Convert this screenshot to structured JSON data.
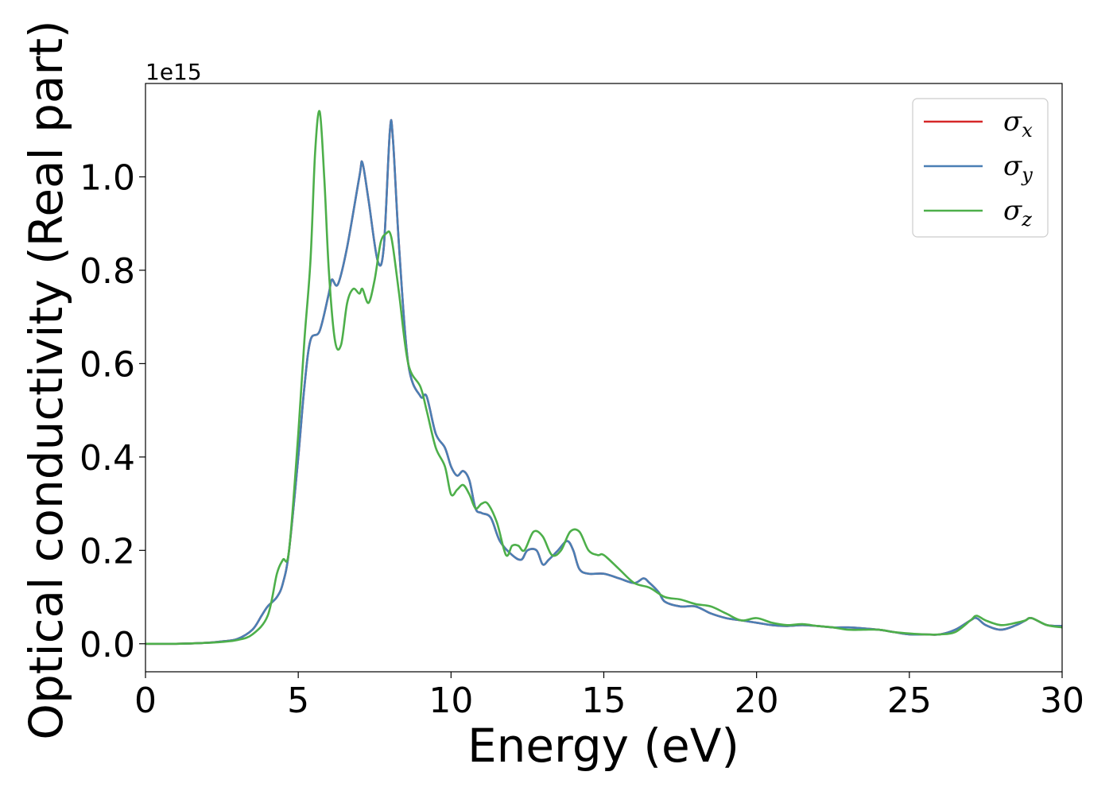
{
  "chart_data": {
    "type": "line",
    "title": "",
    "xlabel": "Energy (eV)",
    "ylabel": "Optical conductivity (Real part)",
    "y_offset_text": "1e15",
    "xlim": [
      0,
      30
    ],
    "ylim": [
      -0.06,
      1.2
    ],
    "y_scale": 1000000000000000.0,
    "grid": false,
    "legend_placement": "top-right",
    "x_ticks": [
      0,
      5,
      10,
      15,
      20,
      25,
      30
    ],
    "x_tick_labels": [
      "0",
      "5",
      "10",
      "15",
      "20",
      "25",
      "30"
    ],
    "y_ticks": [
      0.0,
      0.2,
      0.4,
      0.6,
      0.8,
      1.0
    ],
    "y_tick_labels": [
      "0.0",
      "0.2",
      "0.4",
      "0.6",
      "0.8",
      "1.0"
    ],
    "series": [
      {
        "name": "σx",
        "symbol": "σ",
        "subscript": "x",
        "color": "#d62728",
        "x": [
          0,
          1,
          2,
          2.5,
          3,
          3.5,
          3.8,
          4.0,
          4.3,
          4.5,
          4.7,
          5.0,
          5.2,
          5.4,
          5.7,
          6.0,
          6.1,
          6.3,
          6.6,
          7.0,
          7.1,
          7.3,
          7.6,
          7.8,
          8.0,
          8.1,
          8.3,
          8.6,
          9.0,
          9.2,
          9.5,
          9.8,
          10.0,
          10.2,
          10.4,
          10.6,
          10.8,
          11.0,
          11.3,
          11.6,
          12.0,
          12.3,
          12.5,
          12.8,
          13.0,
          13.2,
          13.5,
          13.8,
          14.0,
          14.2,
          14.5,
          15.0,
          15.5,
          16.0,
          16.3,
          16.5,
          16.8,
          17.0,
          17.5,
          18.0,
          18.5,
          19.0,
          19.5,
          20.0,
          20.5,
          21.0,
          21.5,
          22.0,
          22.5,
          23.0,
          23.5,
          24.0,
          24.5,
          25.0,
          25.5,
          26.0,
          26.5,
          27.0,
          27.2,
          27.5,
          28.0,
          28.5,
          28.8,
          29.0,
          29.5,
          30.0
        ],
        "y": [
          0,
          0,
          0.002,
          0.005,
          0.01,
          0.03,
          0.06,
          0.08,
          0.1,
          0.13,
          0.2,
          0.4,
          0.55,
          0.65,
          0.67,
          0.75,
          0.78,
          0.77,
          0.85,
          1.0,
          1.03,
          0.95,
          0.82,
          0.85,
          1.1,
          1.08,
          0.85,
          0.6,
          0.53,
          0.53,
          0.45,
          0.42,
          0.38,
          0.36,
          0.37,
          0.35,
          0.29,
          0.28,
          0.27,
          0.22,
          0.19,
          0.18,
          0.2,
          0.2,
          0.17,
          0.18,
          0.2,
          0.22,
          0.2,
          0.16,
          0.15,
          0.15,
          0.14,
          0.13,
          0.14,
          0.13,
          0.11,
          0.09,
          0.08,
          0.08,
          0.065,
          0.055,
          0.05,
          0.045,
          0.04,
          0.038,
          0.04,
          0.038,
          0.035,
          0.035,
          0.033,
          0.03,
          0.025,
          0.02,
          0.02,
          0.02,
          0.03,
          0.05,
          0.055,
          0.04,
          0.03,
          0.04,
          0.05,
          0.055,
          0.04,
          0.038
        ]
      },
      {
        "name": "σy",
        "symbol": "σ",
        "subscript": "y",
        "color": "#4a7fb5",
        "x": [
          0,
          1,
          2,
          2.5,
          3,
          3.5,
          3.8,
          4.0,
          4.3,
          4.5,
          4.7,
          5.0,
          5.2,
          5.4,
          5.7,
          6.0,
          6.1,
          6.3,
          6.6,
          7.0,
          7.1,
          7.3,
          7.6,
          7.8,
          8.0,
          8.1,
          8.3,
          8.6,
          9.0,
          9.2,
          9.5,
          9.8,
          10.0,
          10.2,
          10.4,
          10.6,
          10.8,
          11.0,
          11.3,
          11.6,
          12.0,
          12.3,
          12.5,
          12.8,
          13.0,
          13.2,
          13.5,
          13.8,
          14.0,
          14.2,
          14.5,
          15.0,
          15.5,
          16.0,
          16.3,
          16.5,
          16.8,
          17.0,
          17.5,
          18.0,
          18.5,
          19.0,
          19.5,
          20.0,
          20.5,
          21.0,
          21.5,
          22.0,
          22.5,
          23.0,
          23.5,
          24.0,
          24.5,
          25.0,
          25.5,
          26.0,
          26.5,
          27.0,
          27.2,
          27.5,
          28.0,
          28.5,
          28.8,
          29.0,
          29.5,
          30.0
        ],
        "y": [
          0,
          0,
          0.002,
          0.005,
          0.01,
          0.03,
          0.06,
          0.08,
          0.1,
          0.13,
          0.2,
          0.4,
          0.55,
          0.65,
          0.67,
          0.75,
          0.78,
          0.77,
          0.85,
          1.0,
          1.03,
          0.95,
          0.82,
          0.85,
          1.1,
          1.08,
          0.85,
          0.6,
          0.53,
          0.53,
          0.45,
          0.42,
          0.38,
          0.36,
          0.37,
          0.35,
          0.29,
          0.28,
          0.27,
          0.22,
          0.19,
          0.18,
          0.2,
          0.2,
          0.17,
          0.18,
          0.2,
          0.22,
          0.2,
          0.16,
          0.15,
          0.15,
          0.14,
          0.13,
          0.14,
          0.13,
          0.11,
          0.09,
          0.08,
          0.08,
          0.065,
          0.055,
          0.05,
          0.045,
          0.04,
          0.038,
          0.04,
          0.038,
          0.035,
          0.035,
          0.033,
          0.03,
          0.025,
          0.02,
          0.02,
          0.02,
          0.03,
          0.05,
          0.055,
          0.04,
          0.03,
          0.04,
          0.05,
          0.055,
          0.04,
          0.038
        ]
      },
      {
        "name": "σz",
        "symbol": "σ",
        "subscript": "z",
        "color": "#4daf4a",
        "x": [
          0,
          1,
          2,
          2.5,
          3,
          3.5,
          4.0,
          4.3,
          4.5,
          4.7,
          5.0,
          5.2,
          5.4,
          5.55,
          5.7,
          5.85,
          6.0,
          6.2,
          6.4,
          6.6,
          6.8,
          7.0,
          7.1,
          7.3,
          7.5,
          7.7,
          7.9,
          8.0,
          8.1,
          8.3,
          8.6,
          9.0,
          9.2,
          9.5,
          9.8,
          10.0,
          10.2,
          10.4,
          10.6,
          10.8,
          11.0,
          11.2,
          11.5,
          11.8,
          12.0,
          12.2,
          12.4,
          12.7,
          13.0,
          13.3,
          13.6,
          13.9,
          14.2,
          14.5,
          14.8,
          15.0,
          15.5,
          16.0,
          16.5,
          17.0,
          17.5,
          18.0,
          18.5,
          19.0,
          19.5,
          20.0,
          20.5,
          21.0,
          21.5,
          22.0,
          22.5,
          23.0,
          23.5,
          24.0,
          24.5,
          25.0,
          25.5,
          26.0,
          26.5,
          27.0,
          27.2,
          27.5,
          28.0,
          28.5,
          28.8,
          29.0,
          29.5,
          30.0
        ],
        "y": [
          0,
          0,
          0.002,
          0.004,
          0.008,
          0.02,
          0.06,
          0.15,
          0.18,
          0.2,
          0.45,
          0.65,
          0.82,
          1.05,
          1.14,
          1.0,
          0.8,
          0.65,
          0.64,
          0.73,
          0.76,
          0.75,
          0.76,
          0.73,
          0.78,
          0.86,
          0.88,
          0.88,
          0.85,
          0.75,
          0.6,
          0.55,
          0.5,
          0.42,
          0.38,
          0.32,
          0.33,
          0.34,
          0.32,
          0.29,
          0.3,
          0.3,
          0.26,
          0.19,
          0.21,
          0.21,
          0.2,
          0.24,
          0.23,
          0.19,
          0.2,
          0.24,
          0.24,
          0.2,
          0.19,
          0.19,
          0.16,
          0.13,
          0.12,
          0.1,
          0.095,
          0.085,
          0.08,
          0.065,
          0.05,
          0.055,
          0.045,
          0.04,
          0.042,
          0.038,
          0.035,
          0.03,
          0.03,
          0.03,
          0.025,
          0.022,
          0.02,
          0.02,
          0.025,
          0.05,
          0.06,
          0.05,
          0.04,
          0.045,
          0.05,
          0.055,
          0.04,
          0.035
        ]
      }
    ]
  }
}
